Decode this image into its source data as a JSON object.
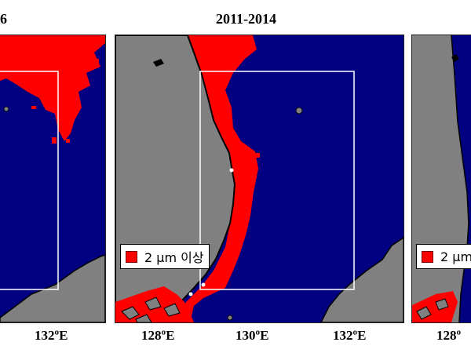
{
  "titles": {
    "left_partial": "6",
    "center": "2011-2014"
  },
  "legend": {
    "center_text": "2 μm 이상",
    "right_text": "2 μm",
    "color": "#ff0000"
  },
  "ticks": {
    "left": [
      "132ºE"
    ],
    "center": [
      "128ºE",
      "130ºE",
      "132ºE"
    ],
    "right": [
      "128º"
    ]
  },
  "colors": {
    "sea": "#000080",
    "land": "#808080",
    "coastline": "#000000",
    "domain_box": "#ffffff",
    "highlight": "#ff0000"
  }
}
